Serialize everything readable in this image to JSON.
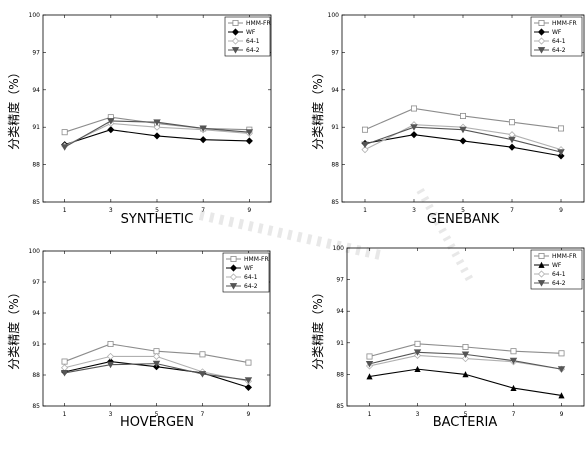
{
  "chart_data": [
    {
      "type": "line",
      "xlabel": "SYNTHETIC",
      "ylabel": "分类精度（%）",
      "x": [
        1,
        3,
        5,
        7,
        9
      ],
      "xticks": [
        "1",
        "3",
        "5",
        "7",
        "9"
      ],
      "yticks": [
        "85",
        "88",
        "91",
        "94",
        "97",
        "100"
      ],
      "ylim": [
        85,
        100
      ],
      "legend_position": "top-right",
      "series": [
        {
          "name": "HMM-FR",
          "marker": "square",
          "color": "#8c8c8c",
          "values": [
            90.6,
            91.8,
            91.3,
            90.9,
            90.8
          ]
        },
        {
          "name": "WF",
          "marker": "diamond-filled",
          "color": "#000000",
          "values": [
            89.6,
            90.8,
            90.3,
            90.0,
            89.9
          ]
        },
        {
          "name": "64-1",
          "marker": "diamond-open",
          "color": "#b0b0b0",
          "values": [
            89.5,
            91.3,
            91.0,
            90.8,
            90.5
          ]
        },
        {
          "name": "64-2",
          "marker": "triangle-down",
          "color": "#555555",
          "values": [
            89.4,
            91.5,
            91.4,
            90.9,
            90.6
          ]
        }
      ]
    },
    {
      "type": "line",
      "xlabel": "GENEBANK",
      "ylabel": "分类精度（%）",
      "x": [
        1,
        3,
        5,
        7,
        9
      ],
      "xticks": [
        "1",
        "3",
        "5",
        "7",
        "9"
      ],
      "yticks": [
        "85",
        "88",
        "91",
        "94",
        "97",
        "100"
      ],
      "ylim": [
        85,
        100
      ],
      "legend_position": "top-right",
      "series": [
        {
          "name": "HMM-FR",
          "marker": "square",
          "color": "#8c8c8c",
          "values": [
            90.8,
            92.5,
            91.9,
            91.4,
            90.9
          ]
        },
        {
          "name": "WF",
          "marker": "diamond-filled",
          "color": "#000000",
          "values": [
            89.7,
            90.4,
            89.9,
            89.4,
            88.7
          ]
        },
        {
          "name": "64-1",
          "marker": "diamond-open",
          "color": "#b0b0b0",
          "values": [
            89.2,
            91.2,
            91.0,
            90.4,
            89.2
          ]
        },
        {
          "name": "64-2",
          "marker": "triangle-down",
          "color": "#555555",
          "values": [
            89.6,
            91.0,
            90.8,
            90.0,
            89.0
          ]
        }
      ]
    },
    {
      "type": "line",
      "xlabel": "HOVERGEN",
      "ylabel": "分类精度（%）",
      "x": [
        1,
        3,
        5,
        7,
        9
      ],
      "xticks": [
        "1",
        "3",
        "5",
        "7",
        "9"
      ],
      "yticks": [
        "85",
        "88",
        "91",
        "94",
        "97",
        "100"
      ],
      "ylim": [
        85,
        100
      ],
      "legend_position": "top-right",
      "series": [
        {
          "name": "HMM-FR",
          "marker": "square",
          "color": "#8c8c8c",
          "values": [
            89.3,
            91.0,
            90.3,
            90.0,
            89.2
          ]
        },
        {
          "name": "WF",
          "marker": "diamond-filled",
          "color": "#000000",
          "values": [
            88.3,
            89.3,
            88.8,
            88.2,
            86.8
          ]
        },
        {
          "name": "64-1",
          "marker": "diamond-open",
          "color": "#b0b0b0",
          "values": [
            88.7,
            89.8,
            89.8,
            88.3,
            87.4
          ]
        },
        {
          "name": "64-2",
          "marker": "triangle-down",
          "color": "#555555",
          "values": [
            88.2,
            89.0,
            89.1,
            88.1,
            87.5
          ]
        }
      ]
    },
    {
      "type": "line",
      "xlabel": "BACTERIA",
      "ylabel": "分类精度（%）",
      "x": [
        1,
        3,
        5,
        7,
        9
      ],
      "xticks": [
        "1",
        "3",
        "5",
        "7",
        "9"
      ],
      "yticks": [
        "85",
        "88",
        "91",
        "94",
        "97",
        "100"
      ],
      "ylim": [
        85,
        100
      ],
      "legend_position": "top-right",
      "series": [
        {
          "name": "HMM-FR",
          "marker": "square",
          "color": "#8c8c8c",
          "values": [
            89.7,
            90.9,
            90.6,
            90.2,
            90.0
          ]
        },
        {
          "name": "WF",
          "marker": "triangle-up",
          "color": "#000000",
          "values": [
            87.8,
            88.5,
            88.0,
            86.7,
            86.0
          ]
        },
        {
          "name": "64-1",
          "marker": "diamond-open",
          "color": "#b0b0b0",
          "values": [
            88.8,
            89.8,
            89.5,
            89.2,
            88.5
          ]
        },
        {
          "name": "64-2",
          "marker": "triangle-down",
          "color": "#555555",
          "values": [
            89.0,
            90.1,
            89.9,
            89.3,
            88.5
          ]
        }
      ]
    }
  ]
}
